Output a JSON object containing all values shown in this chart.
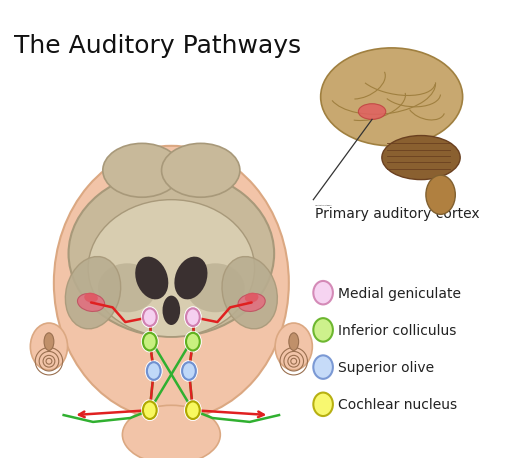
{
  "title": "The Auditory Pathways",
  "title_fontsize": 18,
  "bg_color": "#ffffff",
  "head_skin": "#f2c4a8",
  "head_edge": "#dba882",
  "brain_beige": "#c8b99a",
  "brain_beige_edge": "#a8997a",
  "brain_dark_inner": "#b0a07a",
  "ventricle_color": "#3a3030",
  "brain_shadow": "#c0b090",
  "cortex_red": "#e07080",
  "ear_brown": "#9a7050",
  "pathway_green": "#30b030",
  "pathway_red": "#e02020",
  "pathway_dark_green": "#006000",
  "node_medial_face": "#f5d0f0",
  "node_medial_edge": "#d080b0",
  "node_inferior_face": "#c8f080",
  "node_inferior_edge": "#60b020",
  "node_olive_face": "#c0d8f8",
  "node_olive_edge": "#7090d0",
  "node_cochlear_face": "#f8f860",
  "node_cochlear_edge": "#b0a800",
  "node_white_face": "#ffffff",
  "side_brain_color": "#c8a870",
  "side_brain_edge": "#a08040",
  "side_cerebellum": "#8a6030",
  "side_stem": "#b08040",
  "side_gyri": "#a08040",
  "aud_cortex_spot": "#e06060",
  "legend_items": [
    {
      "label": "Medial geniculate",
      "face": "#f5d0f0",
      "edge": "#d080b0"
    },
    {
      "label": "Inferior colliculus",
      "face": "#c8f080",
      "edge": "#60b020"
    },
    {
      "label": "Superior olive",
      "face": "#c0d8f8",
      "edge": "#7090d0"
    },
    {
      "label": "Cochlear nucleus",
      "face": "#f8f860",
      "edge": "#b0a800"
    }
  ]
}
